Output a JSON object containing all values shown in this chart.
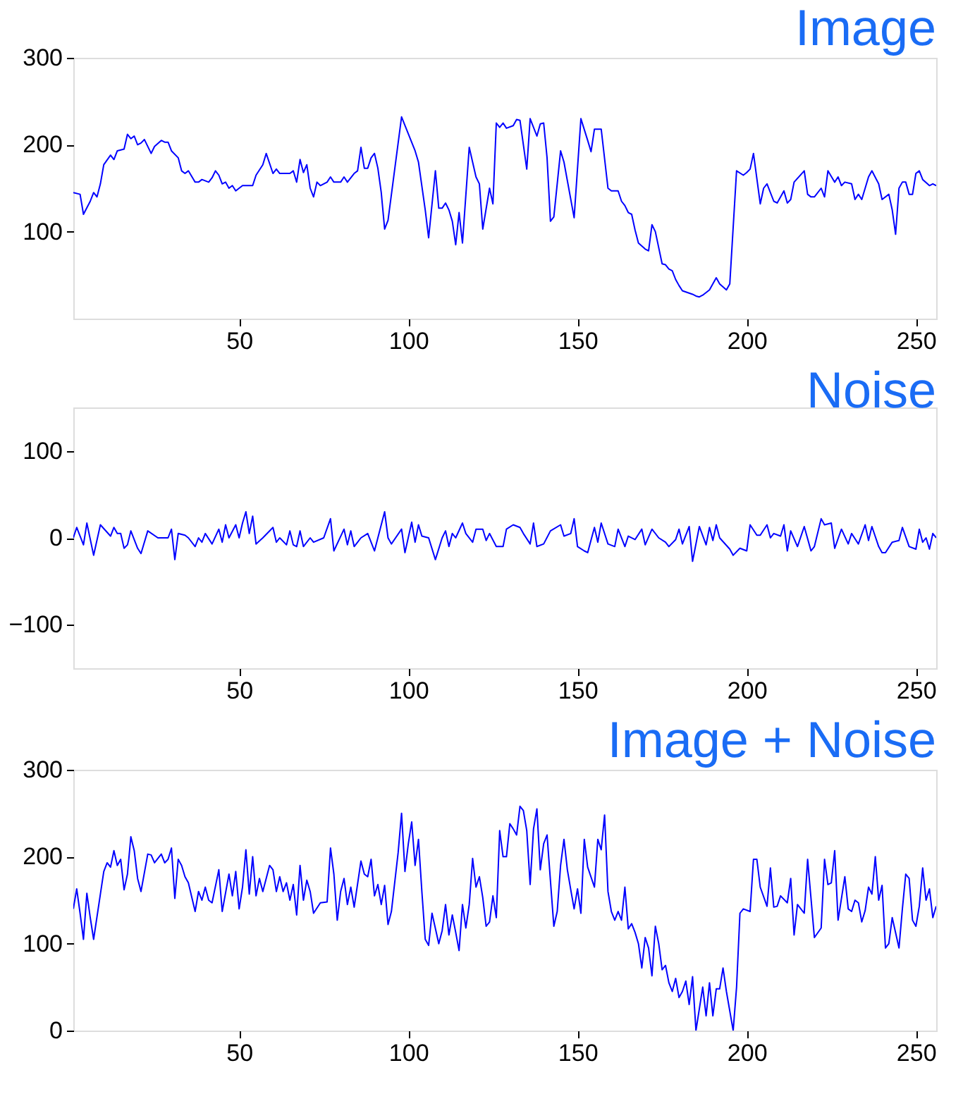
{
  "chart_data": [
    {
      "type": "line",
      "title": "Image",
      "color": "#0000ff",
      "grid": false,
      "xlim": [
        1,
        256
      ],
      "xticks": [
        50,
        100,
        150,
        200,
        250
      ],
      "ylim": [
        0,
        300
      ],
      "yticks": [
        100,
        200,
        300
      ],
      "x": [
        1,
        3,
        4,
        6,
        7,
        8,
        9,
        10,
        12,
        13,
        14,
        16,
        17,
        18,
        19,
        20,
        21,
        22,
        24,
        25,
        27,
        28,
        29,
        30,
        32,
        33,
        34,
        35,
        37,
        38,
        39,
        41,
        42,
        43,
        44,
        45,
        46,
        47,
        48,
        49,
        51,
        54,
        55,
        57,
        58,
        60,
        61,
        62,
        65,
        66,
        67,
        68,
        69,
        70,
        71,
        72,
        73,
        74,
        76,
        77,
        78,
        80,
        81,
        82,
        84,
        85,
        86,
        87,
        88,
        89,
        90,
        91,
        92,
        93,
        94,
        98,
        102,
        103,
        105,
        106,
        108,
        109,
        110,
        111,
        112,
        113,
        114,
        115,
        116,
        118,
        120,
        121,
        122,
        124,
        125,
        126,
        127,
        128,
        129,
        131,
        132,
        133,
        135,
        136,
        138,
        139,
        140,
        141,
        142,
        143,
        145,
        146,
        149,
        151,
        153,
        154,
        155,
        157,
        159,
        160,
        162,
        163,
        164,
        165,
        166,
        167,
        168,
        170,
        171,
        172,
        173,
        175,
        176,
        177,
        178,
        179,
        180,
        181,
        184,
        185,
        186,
        187,
        189,
        191,
        192,
        194,
        195,
        197,
        199,
        200,
        201,
        202,
        204,
        205,
        206,
        208,
        209,
        211,
        212,
        213,
        214,
        217,
        218,
        219,
        220,
        222,
        223,
        224,
        226,
        227,
        228,
        229,
        231,
        232,
        233,
        234,
        236,
        237,
        239,
        240,
        242,
        243,
        244,
        245,
        246,
        247,
        248,
        249,
        250,
        251,
        252,
        254,
        255,
        256
      ],
      "values": [
        145,
        143,
        120,
        135,
        145,
        140,
        155,
        177,
        188,
        183,
        193,
        195,
        212,
        207,
        210,
        200,
        202,
        206,
        190,
        198,
        205,
        203,
        203,
        193,
        185,
        170,
        167,
        170,
        157,
        157,
        160,
        157,
        162,
        170,
        165,
        155,
        157,
        150,
        153,
        147,
        153,
        153,
        165,
        177,
        190,
        167,
        172,
        167,
        167,
        170,
        157,
        183,
        168,
        177,
        150,
        140,
        157,
        153,
        157,
        163,
        157,
        157,
        163,
        157,
        167,
        170,
        197,
        173,
        173,
        185,
        190,
        173,
        145,
        103,
        113,
        232,
        193,
        180,
        125,
        93,
        170,
        127,
        127,
        133,
        125,
        112,
        85,
        122,
        87,
        197,
        163,
        155,
        103,
        150,
        132,
        225,
        220,
        225,
        219,
        222,
        229,
        228,
        172,
        230,
        210,
        224,
        225,
        185,
        112,
        117,
        193,
        180,
        116,
        230,
        205,
        192,
        218,
        218,
        150,
        147,
        147,
        135,
        130,
        122,
        120,
        102,
        87,
        80,
        78,
        108,
        100,
        63,
        62,
        57,
        55,
        45,
        38,
        32,
        28,
        26,
        25,
        27,
        33,
        47,
        40,
        33,
        40,
        170,
        165,
        168,
        172,
        190,
        132,
        150,
        155,
        135,
        133,
        147,
        133,
        137,
        157,
        170,
        143,
        140,
        140,
        150,
        140,
        170,
        157,
        163,
        153,
        157,
        155,
        137,
        143,
        137,
        163,
        170,
        155,
        137,
        143,
        125,
        97,
        150,
        157,
        157,
        143,
        143,
        167,
        170,
        160,
        153,
        155,
        153
      ]
    },
    {
      "type": "line",
      "title": "Noise",
      "color": "#0000ff",
      "grid": false,
      "xlim": [
        1,
        256
      ],
      "xticks": [
        50,
        100,
        150,
        200,
        250
      ],
      "ylim": [
        -150,
        150
      ],
      "yticks": [
        -100,
        0,
        100
      ],
      "x": [
        1,
        2,
        4,
        5,
        7,
        9,
        12,
        13,
        14,
        15,
        16,
        17,
        18,
        20,
        21,
        23,
        26,
        29,
        30,
        31,
        32,
        34,
        35,
        37,
        38,
        39,
        40,
        42,
        44,
        45,
        46,
        47,
        49,
        50,
        51,
        52,
        53,
        54,
        55,
        57,
        60,
        61,
        62,
        64,
        65,
        66,
        67,
        68,
        69,
        71,
        72,
        75,
        77,
        78,
        81,
        82,
        83,
        84,
        86,
        88,
        90,
        91,
        93,
        94,
        95,
        98,
        99,
        101,
        102,
        103,
        104,
        106,
        108,
        110,
        111,
        112,
        113,
        114,
        116,
        117,
        119,
        120,
        122,
        123,
        124,
        126,
        128,
        129,
        131,
        133,
        134,
        136,
        137,
        138,
        140,
        142,
        145,
        146,
        148,
        149,
        150,
        152,
        153,
        155,
        156,
        157,
        159,
        161,
        162,
        164,
        165,
        167,
        169,
        170,
        172,
        174,
        176,
        177,
        179,
        180,
        181,
        183,
        184,
        186,
        188,
        189,
        190,
        191,
        192,
        195,
        196,
        198,
        200,
        201,
        203,
        204,
        206,
        207,
        208,
        210,
        211,
        212,
        213,
        215,
        217,
        219,
        220,
        222,
        223,
        225,
        226,
        228,
        230,
        231,
        233,
        235,
        236,
        237,
        239,
        240,
        241,
        243,
        245,
        246,
        248,
        250,
        251,
        252,
        253,
        254,
        255,
        256
      ],
      "values": [
        0,
        12,
        -8,
        17,
        -20,
        15,
        2,
        12,
        5,
        5,
        -12,
        -8,
        8,
        -12,
        -18,
        8,
        0,
        0,
        10,
        -25,
        5,
        3,
        0,
        -10,
        0,
        -5,
        5,
        -7,
        10,
        -5,
        15,
        0,
        15,
        0,
        17,
        30,
        5,
        25,
        -7,
        0,
        12,
        -5,
        0,
        -8,
        8,
        -8,
        -10,
        8,
        -10,
        0,
        -5,
        0,
        22,
        -15,
        10,
        -8,
        8,
        -10,
        0,
        5,
        -15,
        0,
        30,
        0,
        -7,
        10,
        -17,
        18,
        -5,
        15,
        2,
        0,
        -25,
        0,
        8,
        -10,
        5,
        0,
        17,
        5,
        -5,
        10,
        10,
        -3,
        5,
        -10,
        -10,
        10,
        15,
        12,
        5,
        -7,
        17,
        -10,
        -7,
        8,
        15,
        2,
        5,
        22,
        -10,
        -15,
        -17,
        12,
        -5,
        17,
        -7,
        -10,
        10,
        -10,
        2,
        -2,
        10,
        -8,
        10,
        0,
        -5,
        -10,
        -2,
        10,
        -7,
        13,
        -27,
        13,
        -8,
        12,
        -3,
        15,
        0,
        -13,
        -20,
        -12,
        -15,
        15,
        3,
        3,
        15,
        0,
        5,
        2,
        15,
        -15,
        8,
        -10,
        13,
        -15,
        -10,
        22,
        15,
        17,
        -12,
        10,
        -7,
        5,
        -7,
        15,
        -3,
        13,
        -10,
        -17,
        -17,
        -5,
        -3,
        12,
        -10,
        -13,
        10,
        -5,
        0,
        -13,
        5,
        0
      ]
    },
    {
      "type": "line",
      "title": "Image + Noise",
      "color": "#0000ff",
      "grid": false,
      "xlim": [
        1,
        256
      ],
      "xticks": [
        50,
        100,
        150,
        200,
        250
      ],
      "ylim": [
        0,
        300
      ],
      "yticks": [
        0,
        100,
        200,
        300
      ],
      "x": [
        1,
        2,
        3,
        4,
        5,
        6,
        7,
        9,
        10,
        11,
        12,
        13,
        14,
        15,
        16,
        17,
        18,
        19,
        20,
        21,
        23,
        24,
        25,
        27,
        28,
        29,
        30,
        31,
        32,
        33,
        34,
        35,
        37,
        38,
        39,
        40,
        41,
        42,
        44,
        45,
        47,
        48,
        49,
        50,
        51,
        52,
        53,
        54,
        55,
        56,
        57,
        59,
        60,
        61,
        62,
        63,
        64,
        65,
        66,
        67,
        68,
        69,
        70,
        71,
        72,
        74,
        76,
        77,
        78,
        79,
        80,
        81,
        82,
        83,
        84,
        86,
        87,
        88,
        89,
        90,
        91,
        92,
        93,
        94,
        95,
        97,
        98,
        99,
        100,
        101,
        102,
        103,
        104,
        105,
        106,
        107,
        109,
        110,
        111,
        112,
        113,
        114,
        115,
        116,
        117,
        118,
        119,
        120,
        121,
        122,
        123,
        124,
        125,
        126,
        127,
        128,
        129,
        130,
        131,
        132,
        133,
        134,
        135,
        136,
        137,
        138,
        139,
        140,
        141,
        143,
        144,
        145,
        146,
        147,
        148,
        149,
        150,
        151,
        152,
        153,
        155,
        156,
        157,
        158,
        159,
        160,
        161,
        162,
        163,
        164,
        165,
        166,
        167,
        168,
        169,
        170,
        171,
        172,
        173,
        174,
        175,
        176,
        177,
        178,
        179,
        180,
        181,
        182,
        183,
        184,
        185,
        187,
        188,
        189,
        190,
        191,
        192,
        193,
        194,
        196,
        197,
        198,
        199,
        201,
        202,
        203,
        204,
        206,
        207,
        208,
        209,
        210,
        212,
        213,
        214,
        215,
        216,
        217,
        218,
        220,
        222,
        223,
        224,
        225,
        226,
        227,
        229,
        230,
        231,
        232,
        233,
        234,
        235,
        236,
        237,
        238,
        239,
        240,
        241,
        242,
        243,
        245,
        246,
        247,
        248,
        249,
        250,
        251,
        252,
        253,
        254,
        255,
        256
      ],
      "values": [
        140,
        163,
        135,
        105,
        158,
        130,
        105,
        157,
        183,
        193,
        188,
        207,
        190,
        197,
        162,
        180,
        223,
        207,
        175,
        160,
        203,
        202,
        193,
        203,
        193,
        197,
        210,
        152,
        197,
        190,
        177,
        170,
        137,
        160,
        150,
        165,
        150,
        147,
        185,
        137,
        180,
        155,
        183,
        140,
        165,
        208,
        157,
        200,
        155,
        175,
        160,
        190,
        185,
        160,
        177,
        160,
        170,
        150,
        168,
        133,
        190,
        150,
        173,
        160,
        135,
        147,
        148,
        210,
        180,
        127,
        160,
        175,
        145,
        165,
        142,
        195,
        180,
        177,
        197,
        155,
        168,
        145,
        167,
        122,
        137,
        205,
        250,
        183,
        215,
        240,
        190,
        220,
        160,
        105,
        98,
        135,
        100,
        115,
        145,
        110,
        133,
        113,
        92,
        145,
        118,
        145,
        198,
        165,
        177,
        153,
        120,
        125,
        155,
        130,
        230,
        200,
        200,
        238,
        232,
        225,
        258,
        253,
        230,
        168,
        232,
        255,
        185,
        215,
        225,
        120,
        137,
        190,
        220,
        185,
        162,
        140,
        163,
        135,
        220,
        188,
        165,
        220,
        208,
        248,
        160,
        137,
        127,
        137,
        127,
        165,
        117,
        123,
        113,
        100,
        72,
        107,
        95,
        63,
        120,
        100,
        70,
        75,
        55,
        45,
        60,
        38,
        45,
        57,
        30,
        62,
        0,
        50,
        17,
        55,
        17,
        48,
        48,
        72,
        45,
        0,
        50,
        135,
        140,
        137,
        197,
        197,
        165,
        143,
        187,
        142,
        143,
        155,
        147,
        175,
        110,
        145,
        140,
        135,
        197,
        107,
        118,
        197,
        168,
        170,
        207,
        127,
        177,
        140,
        137,
        150,
        147,
        125,
        138,
        165,
        157,
        200,
        150,
        167,
        95,
        100,
        130,
        95,
        140,
        180,
        175,
        127,
        120,
        143,
        187,
        150,
        163,
        130,
        143
      ]
    }
  ]
}
